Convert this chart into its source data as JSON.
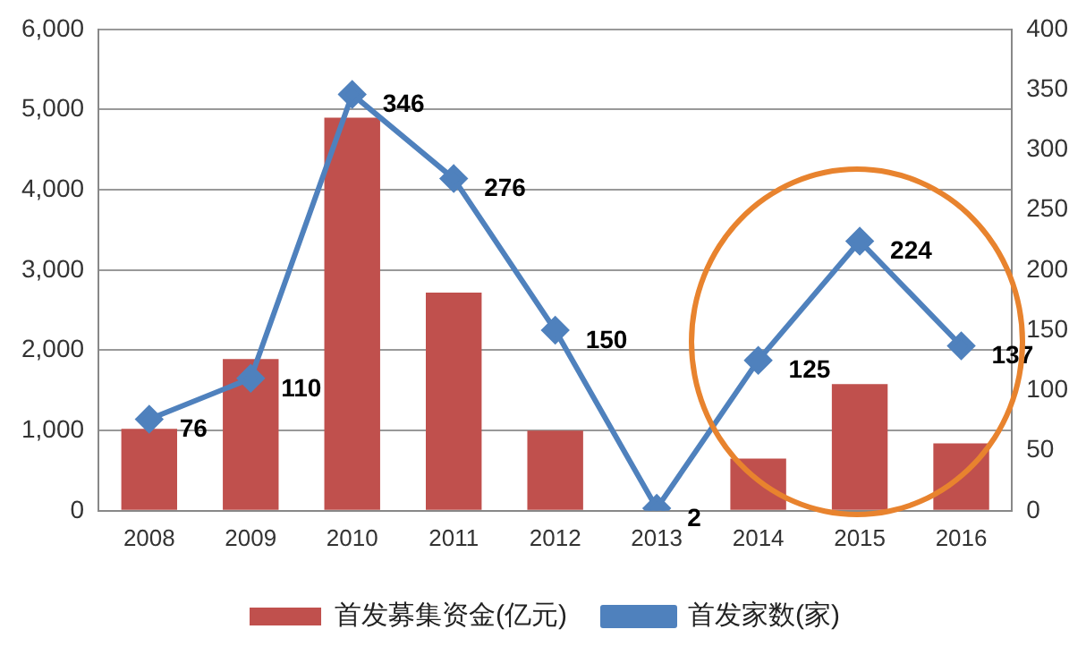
{
  "chart_data": {
    "type": "bar",
    "categories": [
      "2008",
      "2009",
      "2010",
      "2011",
      "2012",
      "2013",
      "2014",
      "2015",
      "2016"
    ],
    "series": [
      {
        "name": "首发募集资金(亿元)",
        "color": "#c0504d",
        "values": [
          1020,
          1890,
          4900,
          2720,
          1000,
          0,
          650,
          1580,
          840
        ]
      },
      {
        "name": "首发家数(家)",
        "type": "line",
        "axis": "y2",
        "color": "#4f81bd",
        "marker": "diamond",
        "values": [
          76,
          110,
          346,
          276,
          150,
          2,
          125,
          224,
          137
        ],
        "value_labels": [
          "76",
          "110",
          "346",
          "276",
          "150",
          "2",
          "125",
          "224",
          "137"
        ]
      }
    ],
    "ylim": [
      0,
      6000
    ],
    "yticks": [
      {
        "value": 0,
        "label": "0"
      },
      {
        "value": 1000,
        "label": "1,000"
      },
      {
        "value": 2000,
        "label": "2,000"
      },
      {
        "value": 3000,
        "label": "3,000"
      },
      {
        "value": 4000,
        "label": "4,000"
      },
      {
        "value": 5000,
        "label": "5,000"
      },
      {
        "value": 6000,
        "label": "6,000"
      }
    ],
    "y2lim": [
      0,
      400
    ],
    "y2ticks": [
      0,
      50,
      100,
      150,
      200,
      250,
      300,
      350,
      400
    ],
    "grid": "y",
    "legend": "bottom"
  }
}
